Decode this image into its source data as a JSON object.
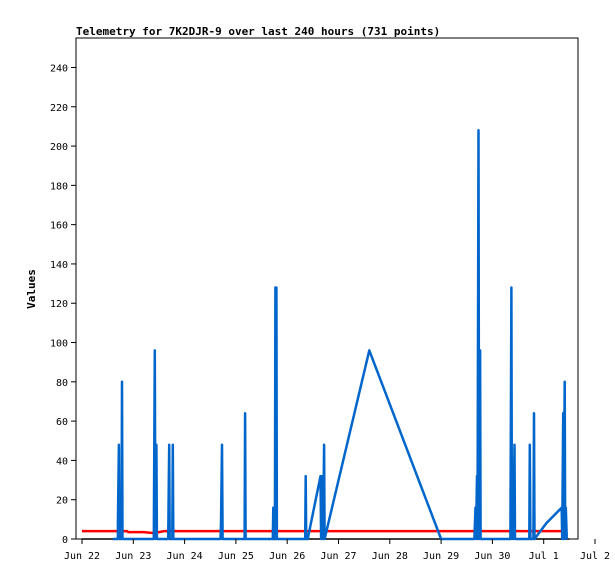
{
  "chart_data": {
    "type": "line",
    "title": "Telemetry for 7K2DJR-9 over last 240 hours (731 points)",
    "xlabel": "",
    "ylabel": "Values",
    "ylim": [
      0,
      255
    ],
    "xlim": [
      0,
      10
    ],
    "x_unit": "days since Jun 22",
    "x_ticks": [
      {
        "x": 0,
        "label": "Jun 22"
      },
      {
        "x": 1,
        "label": "Jun 23"
      },
      {
        "x": 2,
        "label": "Jun 24"
      },
      {
        "x": 3,
        "label": "Jun 25"
      },
      {
        "x": 4,
        "label": "Jun 26"
      },
      {
        "x": 5,
        "label": "Jun 27"
      },
      {
        "x": 6,
        "label": "Jun 28"
      },
      {
        "x": 7,
        "label": "Jun 29"
      },
      {
        "x": 8,
        "label": "Jun 30"
      },
      {
        "x": 9,
        "label": "Jul 1"
      },
      {
        "x": 10,
        "label": "Jul 2"
      }
    ],
    "y_ticks": [
      0,
      20,
      40,
      60,
      80,
      100,
      120,
      140,
      160,
      180,
      200,
      220,
      240
    ],
    "grid": false,
    "series": [
      {
        "name": "",
        "color": "#000000",
        "points": [
          [
            0.0,
            0
          ],
          [
            9.5,
            0
          ]
        ]
      },
      {
        "name": "",
        "color": "#ff0000",
        "points": [
          [
            0.0,
            4
          ],
          [
            0.88,
            4
          ],
          [
            0.9,
            3.5
          ],
          [
            1.2,
            3.5
          ],
          [
            1.4,
            3
          ],
          [
            1.6,
            4
          ],
          [
            9.45,
            4
          ]
        ]
      },
      {
        "name": "",
        "color": "#0066cc",
        "points": [
          [
            0.6,
            0
          ],
          [
            0.7,
            0
          ],
          [
            0.7,
            8
          ],
          [
            0.72,
            48
          ],
          [
            0.73,
            0
          ],
          [
            0.77,
            0
          ],
          [
            0.78,
            80
          ],
          [
            0.79,
            0
          ],
          [
            1.4,
            0
          ],
          [
            1.42,
            96
          ],
          [
            1.43,
            0
          ],
          [
            1.45,
            48
          ],
          [
            1.46,
            0
          ],
          [
            1.68,
            0
          ],
          [
            1.7,
            48
          ],
          [
            1.71,
            0
          ],
          [
            1.76,
            0
          ],
          [
            1.77,
            48
          ],
          [
            1.78,
            0
          ],
          [
            2.7,
            0
          ],
          [
            2.71,
            8
          ],
          [
            2.73,
            48
          ],
          [
            2.74,
            0
          ],
          [
            3.17,
            0
          ],
          [
            3.18,
            64
          ],
          [
            3.19,
            0
          ],
          [
            3.72,
            0
          ],
          [
            3.73,
            16
          ],
          [
            3.74,
            0
          ],
          [
            3.76,
            0
          ],
          [
            3.77,
            128
          ],
          [
            3.78,
            0
          ],
          [
            3.79,
            128
          ],
          [
            3.8,
            0
          ],
          [
            4.35,
            0
          ],
          [
            4.36,
            32
          ],
          [
            4.37,
            0
          ],
          [
            4.4,
            0
          ],
          [
            4.65,
            32
          ],
          [
            4.66,
            0
          ],
          [
            4.68,
            32
          ],
          [
            4.7,
            0
          ],
          [
            4.72,
            48
          ],
          [
            4.73,
            0
          ],
          [
            5.6,
            96
          ],
          [
            7.0,
            0
          ],
          [
            7.65,
            0
          ],
          [
            7.67,
            16
          ],
          [
            7.68,
            0
          ],
          [
            7.7,
            32
          ],
          [
            7.71,
            0
          ],
          [
            7.73,
            208
          ],
          [
            7.74,
            0
          ],
          [
            7.76,
            96
          ],
          [
            7.77,
            0
          ],
          [
            8.35,
            0
          ],
          [
            8.37,
            128
          ],
          [
            8.38,
            0
          ],
          [
            8.4,
            16
          ],
          [
            8.41,
            0
          ],
          [
            8.43,
            48
          ],
          [
            8.44,
            0
          ],
          [
            8.72,
            0
          ],
          [
            8.73,
            48
          ],
          [
            8.74,
            0
          ],
          [
            8.8,
            0
          ],
          [
            8.81,
            64
          ],
          [
            8.82,
            0
          ],
          [
            9.05,
            8
          ],
          [
            9.35,
            16
          ],
          [
            9.36,
            0
          ],
          [
            9.38,
            64
          ],
          [
            9.39,
            0
          ],
          [
            9.41,
            80
          ],
          [
            9.42,
            0
          ],
          [
            9.43,
            16
          ],
          [
            9.45,
            0
          ]
        ]
      }
    ]
  }
}
